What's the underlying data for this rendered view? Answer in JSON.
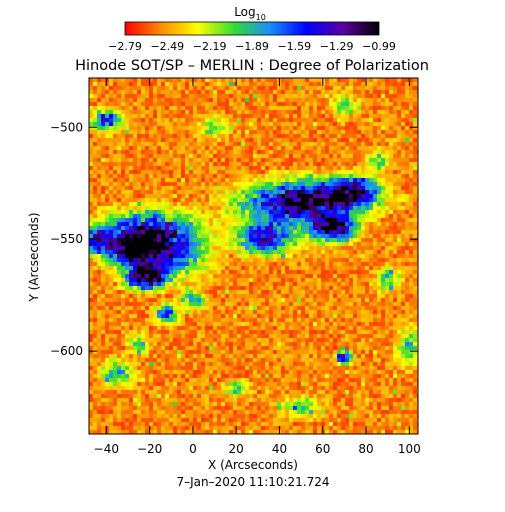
{
  "chart_data": {
    "type": "heatmap",
    "title": "Hinode SOT/SP – MERLIN : Degree of Polarization",
    "colorbar": {
      "label_main": "Log",
      "label_sub": "10",
      "range": [
        -2.79,
        -0.99
      ],
      "ticks": [
        "−2.79",
        "−2.49",
        "−2.19",
        "−1.89",
        "−1.59",
        "−1.29",
        "−0.99"
      ],
      "colors": [
        "#ff0000",
        "#ff8c00",
        "#ffff00",
        "#33dd33",
        "#1a8cff",
        "#0000ff",
        "#5a00a0",
        "#000000"
      ]
    },
    "xlabel": "X (Arcseconds)",
    "ylabel": "Y (Arcseconds)",
    "xlim": [
      -48,
      104
    ],
    "ylim": [
      -637,
      -478
    ],
    "xticks": [
      {
        "value": -40,
        "label": "−40"
      },
      {
        "value": -20,
        "label": "−20"
      },
      {
        "value": 0,
        "label": "0"
      },
      {
        "value": 20,
        "label": "20"
      },
      {
        "value": 40,
        "label": "40"
      },
      {
        "value": 60,
        "label": "60"
      },
      {
        "value": 80,
        "label": "80"
      },
      {
        "value": 100,
        "label": "100"
      }
    ],
    "yticks": [
      {
        "value": -500,
        "label": "−500"
      },
      {
        "value": -550,
        "label": "−550"
      },
      {
        "value": -600,
        "label": "−600"
      }
    ],
    "grid": false,
    "regions": [
      {
        "x": -20,
        "y": -548,
        "rx": 24,
        "ry": 11,
        "level": 0.85
      },
      {
        "x": -22,
        "y": -567,
        "rx": 10,
        "ry": 6,
        "level": 0.9
      },
      {
        "x": -30,
        "y": -555,
        "rx": 14,
        "ry": 8,
        "level": 0.55
      },
      {
        "x": -10,
        "y": -560,
        "rx": 18,
        "ry": 10,
        "level": 0.4
      },
      {
        "x": 55,
        "y": -532,
        "rx": 30,
        "ry": 9,
        "level": 0.7
      },
      {
        "x": 32,
        "y": -550,
        "rx": 14,
        "ry": 7,
        "level": 0.55
      },
      {
        "x": 65,
        "y": -545,
        "rx": 10,
        "ry": 6,
        "level": 0.8
      },
      {
        "x": 75,
        "y": -528,
        "rx": 12,
        "ry": 7,
        "level": 0.6
      },
      {
        "x": 45,
        "y": -540,
        "rx": 30,
        "ry": 14,
        "level": 0.35
      },
      {
        "x": -40,
        "y": -497,
        "rx": 8,
        "ry": 5,
        "level": 0.6
      },
      {
        "x": 70,
        "y": -603,
        "rx": 4,
        "ry": 3,
        "level": 0.85
      },
      {
        "x": -12,
        "y": -583,
        "rx": 6,
        "ry": 5,
        "level": 0.5
      },
      {
        "x": 0,
        "y": -577,
        "rx": 6,
        "ry": 4,
        "level": 0.45
      },
      {
        "x": -45,
        "y": -550,
        "rx": 6,
        "ry": 6,
        "level": 0.45
      },
      {
        "x": -35,
        "y": -610,
        "rx": 8,
        "ry": 6,
        "level": 0.4
      },
      {
        "x": 100,
        "y": -598,
        "rx": 6,
        "ry": 9,
        "level": 0.35
      },
      {
        "x": 70,
        "y": -490,
        "rx": 6,
        "ry": 6,
        "level": 0.3
      },
      {
        "x": 50,
        "y": -625,
        "rx": 10,
        "ry": 5,
        "level": 0.3
      },
      {
        "x": 10,
        "y": -500,
        "rx": 8,
        "ry": 5,
        "level": 0.3
      },
      {
        "x": 90,
        "y": -568,
        "rx": 6,
        "ry": 6,
        "level": 0.4
      },
      {
        "x": -25,
        "y": -597,
        "rx": 5,
        "ry": 5,
        "level": 0.35
      },
      {
        "x": 20,
        "y": -617,
        "rx": 6,
        "ry": 4,
        "level": 0.35
      },
      {
        "x": 85,
        "y": -515,
        "rx": 5,
        "ry": 5,
        "level": 0.35
      }
    ]
  },
  "footer": {
    "timestamp": "7–Jan–2020 11:10:21.724"
  }
}
